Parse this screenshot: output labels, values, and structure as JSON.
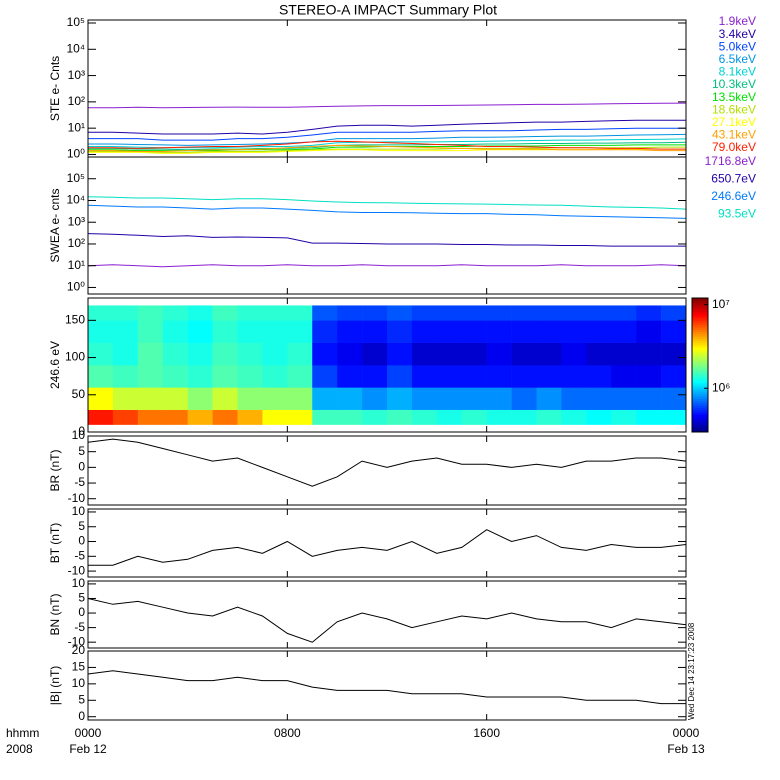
{
  "title": "STEREO-A IMPACT Summary Plot",
  "x_unit_label": "hhmm",
  "x_year_label": "2008",
  "timestamp": "Wed Dec 14 23:17:23 2008",
  "chart_data": [
    {
      "type": "line",
      "ylabel": "STE e- Cnts",
      "log_y": true,
      "xlim": [
        0,
        24
      ],
      "xticks": [
        0,
        8,
        16,
        24
      ],
      "ylim": [
        0.8,
        130000
      ],
      "yticks": [
        {
          "value": 1,
          "label": "10⁰"
        },
        {
          "value": 10,
          "label": "10¹"
        },
        {
          "value": 100,
          "label": "10²"
        },
        {
          "value": 1000,
          "label": "10³"
        },
        {
          "value": 10000,
          "label": "10⁴"
        },
        {
          "value": 100000,
          "label": "10⁵"
        }
      ],
      "x": [
        0,
        1,
        2,
        3,
        4,
        5,
        6,
        7,
        8,
        9,
        10,
        11,
        12,
        13,
        14,
        15,
        16,
        17,
        18,
        19,
        20,
        21,
        22,
        23,
        24
      ],
      "series": [
        {
          "name": "1.9keV",
          "color": "#8a1fd0",
          "values": [
            60,
            60,
            62,
            60,
            61,
            62,
            63,
            62,
            62,
            65,
            68,
            70,
            72,
            72,
            73,
            75,
            76,
            78,
            80,
            80,
            82,
            85,
            87,
            88,
            90
          ]
        },
        {
          "name": "3.4keV",
          "color": "#2200a8",
          "values": [
            7,
            7,
            6.5,
            6,
            6,
            6,
            6.5,
            6,
            7,
            9,
            12,
            13,
            13,
            12,
            13,
            14,
            15,
            16,
            17,
            17,
            18,
            19,
            20,
            20,
            20
          ]
        },
        {
          "name": "5.0keV",
          "color": "#0044ff",
          "values": [
            4,
            4,
            4,
            3.5,
            3.5,
            3.5,
            4,
            4,
            4.5,
            5.5,
            7,
            7,
            7,
            7,
            7.5,
            8,
            8,
            8,
            8.5,
            9,
            9,
            9.5,
            10,
            10,
            10
          ]
        },
        {
          "name": "6.5keV",
          "color": "#0094e0",
          "values": [
            2.5,
            2.5,
            2.4,
            2.3,
            2.2,
            2.3,
            2.4,
            2.5,
            2.7,
            3,
            4,
            4,
            4,
            4,
            4.2,
            4.5,
            4.5,
            4.6,
            4.8,
            5,
            5,
            5.2,
            5.5,
            5.6,
            5.8
          ]
        },
        {
          "name": "8.1keV",
          "color": "#00d0d0",
          "values": [
            2,
            2,
            1.9,
            1.8,
            1.8,
            1.8,
            1.9,
            2,
            2,
            2.2,
            2.8,
            2.9,
            3,
            3,
            3,
            3.1,
            3.2,
            3.3,
            3.4,
            3.5,
            3.5,
            3.6,
            3.7,
            3.8,
            3.9
          ]
        },
        {
          "name": "10.3keV",
          "color": "#00c080",
          "values": [
            1.7,
            1.7,
            1.6,
            1.6,
            1.5,
            1.6,
            1.6,
            1.7,
            1.7,
            1.8,
            2.2,
            2.3,
            2.3,
            2.3,
            2.4,
            2.4,
            2.5,
            2.5,
            2.6,
            2.6,
            2.7,
            2.7,
            2.8,
            2.8,
            2.9
          ]
        },
        {
          "name": "13.5keV",
          "color": "#00e000",
          "values": [
            1.5,
            1.5,
            1.4,
            1.4,
            1.4,
            1.4,
            1.5,
            1.5,
            1.5,
            1.6,
            1.9,
            1.9,
            2,
            2,
            2,
            2,
            2.1,
            2.1,
            2.1,
            2.2,
            2.2,
            2.2,
            2.3,
            2.3,
            2.3
          ]
        },
        {
          "name": "18.6keV",
          "color": "#b0e000",
          "values": [
            1.3,
            1.3,
            1.3,
            1.2,
            1.2,
            1.3,
            1.3,
            1.3,
            1.4,
            1.5,
            1.6,
            1.6,
            1.6,
            1.6,
            1.6,
            1.7,
            1.7,
            1.7,
            1.7,
            1.8,
            1.8,
            1.8,
            1.8,
            1.9,
            1.9
          ]
        },
        {
          "name": "27.1keV",
          "color": "#ffff00",
          "values": [
            1.2,
            1.2,
            1.2,
            1.1,
            1.1,
            1.2,
            1.2,
            1.2,
            1.3,
            1.4,
            1.5,
            1.5,
            1.4,
            1.4,
            1.4,
            1.4,
            1.5,
            1.5,
            1.5,
            1.5,
            1.5,
            1.6,
            1.6,
            1.6,
            1.6
          ]
        },
        {
          "name": "43.1keV",
          "color": "#ffa000",
          "values": [
            1.4,
            1.4,
            1.3,
            1.3,
            1.4,
            1.5,
            1.5,
            1.6,
            1.8,
            2,
            2.2,
            2.1,
            2,
            1.9,
            1.8,
            1.7,
            1.6,
            1.6,
            1.6,
            1.5,
            1.5,
            1.5,
            1.5,
            1.4,
            1.4
          ]
        },
        {
          "name": "79.0keV",
          "color": "#ff2000",
          "values": [
            1.8,
            1.8,
            1.7,
            1.8,
            1.9,
            2,
            2,
            2.2,
            2.5,
            3,
            3.2,
            3,
            2.8,
            2.6,
            2.4,
            2.2,
            2,
            2,
            1.9,
            1.8,
            1.8,
            1.7,
            1.7,
            1.6,
            1.6
          ]
        }
      ]
    },
    {
      "type": "line",
      "ylabel": "SWEA e- cnts",
      "log_y": true,
      "xlim": [
        0,
        24
      ],
      "xticks": [
        0,
        8,
        16,
        24
      ],
      "ylim": [
        0.5,
        1000000
      ],
      "yticks": [
        {
          "value": 1,
          "label": "10⁰"
        },
        {
          "value": 10,
          "label": "10¹"
        },
        {
          "value": 100,
          "label": "10²"
        },
        {
          "value": 1000,
          "label": "10³"
        },
        {
          "value": 10000,
          "label": "10⁴"
        },
        {
          "value": 100000,
          "label": "10⁵"
        }
      ],
      "x": [
        0,
        1,
        2,
        3,
        4,
        5,
        6,
        7,
        8,
        9,
        10,
        11,
        12,
        13,
        14,
        15,
        16,
        17,
        18,
        19,
        20,
        21,
        22,
        23,
        24
      ],
      "series": [
        {
          "name": "1716.8eV",
          "color": "#8a1fd0",
          "values": [
            10,
            11,
            10,
            9,
            10,
            11,
            10,
            10,
            11,
            10,
            10,
            11,
            10,
            10,
            10,
            11,
            10,
            10,
            10,
            11,
            10,
            10,
            10,
            11,
            10
          ]
        },
        {
          "name": "650.7eV",
          "color": "#2200a8",
          "values": [
            300,
            280,
            250,
            220,
            240,
            200,
            210,
            200,
            190,
            110,
            110,
            105,
            100,
            100,
            100,
            95,
            95,
            90,
            90,
            85,
            85,
            80,
            80,
            80,
            80
          ]
        },
        {
          "name": "246.6eV",
          "color": "#0078ff",
          "values": [
            6000,
            5500,
            5000,
            5000,
            4500,
            4000,
            4500,
            4500,
            4000,
            3500,
            3000,
            2800,
            2800,
            2700,
            2600,
            2500,
            2500,
            2300,
            2200,
            2000,
            1900,
            1800,
            1700,
            1600,
            1500
          ]
        },
        {
          "name": "93.5eV",
          "color": "#00e0c0",
          "values": [
            15000,
            14000,
            13000,
            13000,
            12000,
            11000,
            12000,
            12000,
            11000,
            9500,
            8500,
            8000,
            7800,
            7500,
            7200,
            7000,
            6800,
            6500,
            6200,
            6000,
            5500,
            5000,
            4800,
            4500,
            4000
          ]
        }
      ]
    },
    {
      "type": "heatmap",
      "ylabel": "246.6 eV",
      "xlim": [
        0,
        24
      ],
      "xticks": [
        0,
        8,
        16,
        24
      ],
      "ylim": [
        0,
        180
      ],
      "yticks": [
        0,
        50,
        100,
        150
      ],
      "xbins": [
        0,
        1,
        2,
        3,
        4,
        5,
        6,
        7,
        8,
        9,
        10,
        11,
        12,
        13,
        14,
        15,
        16,
        17,
        18,
        19,
        20,
        21,
        22,
        23,
        24
      ],
      "ybins": [
        10,
        30,
        60,
        90,
        120,
        150,
        170
      ],
      "clim": [
        300000,
        12000000
      ],
      "cticks": [
        {
          "value": 1000000,
          "label": "10⁶"
        },
        {
          "value": 10000000,
          "label": "10⁷"
        }
      ],
      "z": [
        [
          7000000.0,
          6000000.0,
          5000000.0,
          5000000.0,
          4000000.0,
          5000000.0,
          4000000.0,
          3000000.0,
          3000000.0,
          1500000.0,
          1500000.0,
          1400000.0,
          1500000.0,
          1400000.0,
          1300000.0,
          1400000.0,
          1300000.0,
          1300000.0,
          1400000.0,
          1300000.0,
          1200000.0,
          1300000.0,
          1200000.0,
          1200000.0
        ],
        [
          3000000.0,
          2500000.0,
          2500000.0,
          2500000.0,
          2000000.0,
          2500000.0,
          2000000.0,
          2000000.0,
          2000000.0,
          900000.0,
          900000.0,
          800000.0,
          900000.0,
          800000.0,
          800000.0,
          800000.0,
          800000.0,
          700000.0,
          800000.0,
          700000.0,
          700000.0,
          700000.0,
          700000.0,
          700000.0
        ],
        [
          1600000.0,
          1500000.0,
          1600000.0,
          1500000.0,
          1400000.0,
          1600000.0,
          1500000.0,
          1400000.0,
          1500000.0,
          600000.0,
          500000.0,
          500000.0,
          600000.0,
          500000.0,
          500000.0,
          500000.0,
          500000.0,
          500000.0,
          500000.0,
          500000.0,
          500000.0,
          450000.0,
          450000.0,
          500000.0
        ],
        [
          1400000.0,
          1300000.0,
          1600000.0,
          1400000.0,
          1300000.0,
          1500000.0,
          1400000.0,
          1300000.0,
          1400000.0,
          500000.0,
          450000.0,
          400000.0,
          500000.0,
          400000.0,
          400000.0,
          400000.0,
          450000.0,
          400000.0,
          400000.0,
          450000.0,
          400000.0,
          400000.0,
          400000.0,
          400000.0
        ],
        [
          1300000.0,
          1300000.0,
          1500000.0,
          1300000.0,
          1200000.0,
          1400000.0,
          1300000.0,
          1300000.0,
          1300000.0,
          550000.0,
          500000.0,
          500000.0,
          550000.0,
          500000.0,
          500000.0,
          500000.0,
          500000.0,
          500000.0,
          500000.0,
          500000.0,
          500000.0,
          500000.0,
          450000.0,
          500000.0
        ],
        [
          1400000.0,
          1400000.0,
          1500000.0,
          1400000.0,
          1300000.0,
          1500000.0,
          1400000.0,
          1400000.0,
          1400000.0,
          650000.0,
          600000.0,
          600000.0,
          650000.0,
          600000.0,
          600000.0,
          600000.0,
          600000.0,
          600000.0,
          600000.0,
          600000.0,
          600000.0,
          600000.0,
          550000.0,
          600000.0
        ]
      ]
    },
    {
      "type": "line",
      "ylabel": "BR (nT)",
      "log_y": false,
      "xlim": [
        0,
        24
      ],
      "xticks": [
        0,
        8,
        16,
        24
      ],
      "ylim": [
        -12,
        10
      ],
      "yticks": [
        -10,
        -5,
        0,
        5,
        10
      ],
      "x": [
        0,
        1,
        2,
        3,
        4,
        5,
        6,
        7,
        8,
        9,
        10,
        11,
        12,
        13,
        14,
        15,
        16,
        17,
        18,
        19,
        20,
        21,
        22,
        23,
        24
      ],
      "series": [
        {
          "color": "#000000",
          "values": [
            8,
            9,
            8,
            6,
            4,
            2,
            3,
            0,
            -3,
            -6,
            -3,
            2,
            0,
            2,
            3,
            1,
            1,
            0,
            1,
            0,
            2,
            2,
            3,
            3,
            2
          ]
        }
      ]
    },
    {
      "type": "line",
      "ylabel": "BT (nT)",
      "log_y": false,
      "xlim": [
        0,
        24
      ],
      "xticks": [
        0,
        8,
        16,
        24
      ],
      "ylim": [
        -12,
        11
      ],
      "yticks": [
        -10,
        -5,
        0,
        5,
        10
      ],
      "x": [
        0,
        1,
        2,
        3,
        4,
        5,
        6,
        7,
        8,
        9,
        10,
        11,
        12,
        13,
        14,
        15,
        16,
        17,
        18,
        19,
        20,
        21,
        22,
        23,
        24
      ],
      "series": [
        {
          "color": "#000000",
          "values": [
            -8,
            -8,
            -5,
            -7,
            -6,
            -3,
            -2,
            -4,
            0,
            -5,
            -3,
            -2,
            -3,
            0,
            -4,
            -2,
            4,
            0,
            2,
            -2,
            -3,
            -1,
            -2,
            -2,
            -1
          ]
        }
      ]
    },
    {
      "type": "line",
      "ylabel": "BN (nT)",
      "log_y": false,
      "xlim": [
        0,
        24
      ],
      "xticks": [
        0,
        8,
        16,
        24
      ],
      "ylim": [
        -12,
        11
      ],
      "yticks": [
        -10,
        -5,
        0,
        5,
        10
      ],
      "x": [
        0,
        1,
        2,
        3,
        4,
        5,
        6,
        7,
        8,
        9,
        10,
        11,
        12,
        13,
        14,
        15,
        16,
        17,
        18,
        19,
        20,
        21,
        22,
        23,
        24
      ],
      "series": [
        {
          "color": "#000000",
          "values": [
            5,
            3,
            4,
            2,
            0,
            -1,
            2,
            -1,
            -7,
            -10,
            -3,
            0,
            -2,
            -5,
            -3,
            -1,
            -2,
            0,
            -2,
            -3,
            -3,
            -5,
            -2,
            -3,
            -4
          ]
        }
      ]
    },
    {
      "type": "line",
      "ylabel": "|B| (nT)",
      "log_y": false,
      "xlim": [
        0,
        24
      ],
      "xticks": [
        {
          "value": 0,
          "label": "0000"
        },
        {
          "value": 8,
          "label": "0800"
        },
        {
          "value": 16,
          "label": "1600"
        },
        {
          "value": 24,
          "label": "0000"
        }
      ],
      "xtick_dates": [
        "Feb 12",
        null,
        null,
        "Feb 13"
      ],
      "ylim": [
        -1,
        20
      ],
      "yticks": [
        0,
        5,
        10,
        15,
        20
      ],
      "x": [
        0,
        1,
        2,
        3,
        4,
        5,
        6,
        7,
        8,
        9,
        10,
        11,
        12,
        13,
        14,
        15,
        16,
        17,
        18,
        19,
        20,
        21,
        22,
        23,
        24
      ],
      "series": [
        {
          "color": "#000000",
          "values": [
            13,
            14,
            13,
            12,
            11,
            11,
            12,
            11,
            11,
            9,
            8,
            8,
            8,
            7,
            7,
            7,
            6,
            6,
            6,
            6,
            5,
            5,
            5,
            4,
            4
          ]
        }
      ]
    }
  ]
}
